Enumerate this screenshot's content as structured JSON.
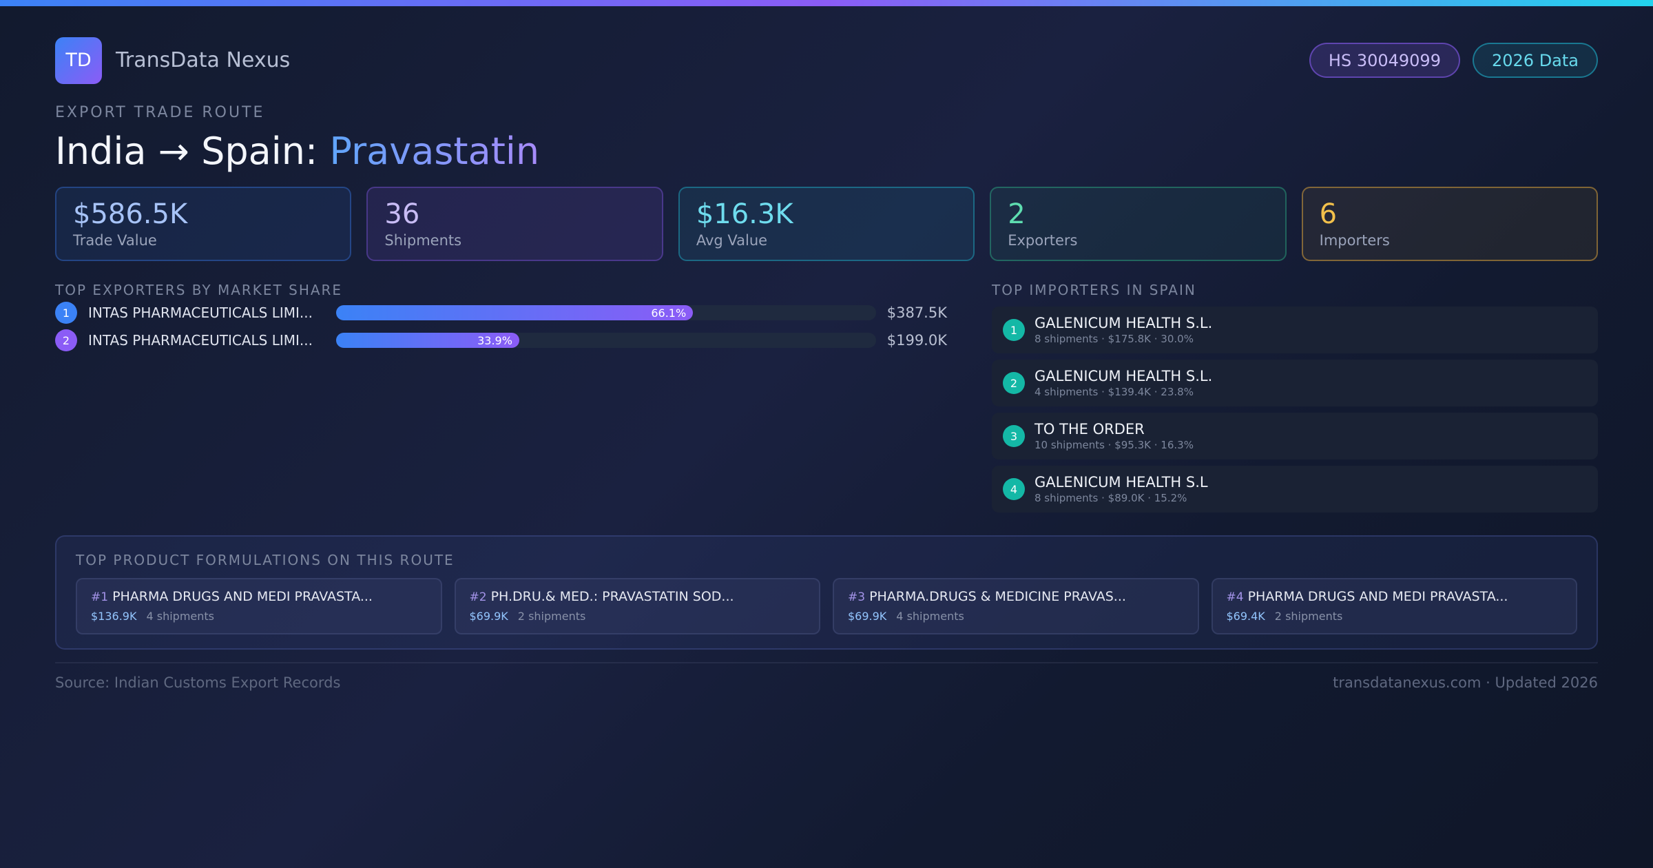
{
  "header": {
    "logo_text": "TD",
    "brand": "TransData Nexus",
    "badges": {
      "hs": "HS 30049099",
      "year": "2026 Data"
    }
  },
  "route": {
    "eyebrow": "EXPORT TRADE ROUTE",
    "title_prefix": "India → Spain: ",
    "product": "Pravastatin"
  },
  "stats": [
    {
      "value": "$586.5K",
      "label": "Trade Value"
    },
    {
      "value": "36",
      "label": "Shipments"
    },
    {
      "value": "$16.3K",
      "label": "Avg Value"
    },
    {
      "value": "2",
      "label": "Exporters"
    },
    {
      "value": "6",
      "label": "Importers"
    }
  ],
  "exporters": {
    "title": "TOP EXPORTERS BY MARKET SHARE",
    "items": [
      {
        "rank": "1",
        "name": "INTAS PHARMACEUTICALS LIMI...",
        "share": 66.1,
        "share_label": "66.1%",
        "value": "$387.5K"
      },
      {
        "rank": "2",
        "name": "INTAS PHARMACEUTICALS LIMI...",
        "share": 33.9,
        "share_label": "33.9%",
        "value": "$199.0K"
      }
    ]
  },
  "importers": {
    "title": "TOP IMPORTERS IN SPAIN",
    "items": [
      {
        "rank": "1",
        "name": "GALENICUM HEALTH S.L.",
        "detail": "8 shipments · $175.8K · 30.0%"
      },
      {
        "rank": "2",
        "name": "GALENICUM HEALTH S.L.",
        "detail": "4 shipments · $139.4K · 23.8%"
      },
      {
        "rank": "3",
        "name": "TO THE ORDER",
        "detail": "10 shipments · $95.3K · 16.3%"
      },
      {
        "rank": "4",
        "name": "GALENICUM HEALTH S.L",
        "detail": "8 shipments · $89.0K · 15.2%"
      }
    ]
  },
  "formulations": {
    "title": "TOP PRODUCT FORMULATIONS ON THIS ROUTE",
    "items": [
      {
        "num": "#1",
        "name": "PHARMA DRUGS AND MEDI PRAVASTA...",
        "value": "$136.9K",
        "shipments": "4 shipments"
      },
      {
        "num": "#2",
        "name": "PH.DRU.& MED.: PRAVASTATIN  SOD...",
        "value": "$69.9K",
        "shipments": "2 shipments"
      },
      {
        "num": "#3",
        "name": "PHARMA.DRUGS & MEDICINE PRAVAS...",
        "value": "$69.9K",
        "shipments": "4 shipments"
      },
      {
        "num": "#4",
        "name": "PHARMA DRUGS AND MEDI PRAVASTA...",
        "value": "$69.4K",
        "shipments": "2 shipments"
      }
    ]
  },
  "footer": {
    "source": "Source: Indian Customs Export Records",
    "site": "transdatanexus.com · Updated 2026"
  }
}
